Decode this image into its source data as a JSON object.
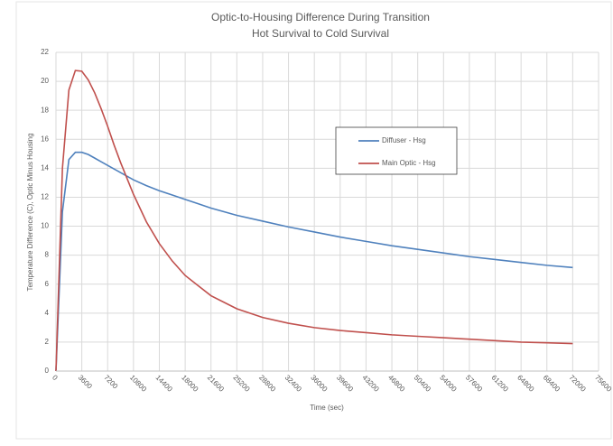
{
  "chart_data": {
    "type": "line",
    "title": "Optic-to-Housing Difference During Transition",
    "subtitle": "Hot Survival to Cold Survival",
    "x_label": "Time (sec)",
    "y_label": "Temperature Difference (C), Optic Minus Housing",
    "x": [
      0,
      900,
      1800,
      2700,
      3600,
      4500,
      5400,
      6300,
      7200,
      8100,
      9000,
      10800,
      12600,
      14400,
      16200,
      18000,
      19800,
      21600,
      25200,
      28800,
      32400,
      36000,
      39600,
      43200,
      46800,
      50400,
      54000,
      57600,
      61200,
      64800,
      68400,
      72000
    ],
    "series": [
      {
        "name": "Diffuser - Hsg",
        "color": "#4f81bd",
        "values": [
          0,
          11,
          14.6,
          15.1,
          15.1,
          14.95,
          14.7,
          14.45,
          14.2,
          13.95,
          13.7,
          13.2,
          12.8,
          12.45,
          12.15,
          11.85,
          11.55,
          11.25,
          10.75,
          10.35,
          9.95,
          9.6,
          9.25,
          8.95,
          8.65,
          8.4,
          8.15,
          7.9,
          7.7,
          7.5,
          7.3,
          7.15
        ]
      },
      {
        "name": "Main Optic - Hsg",
        "color": "#c0504d",
        "values": [
          0,
          14,
          19.4,
          20.75,
          20.7,
          20.1,
          19.2,
          18.1,
          16.9,
          15.6,
          14.4,
          12.2,
          10.3,
          8.8,
          7.6,
          6.6,
          5.9,
          5.2,
          4.3,
          3.7,
          3.3,
          3.0,
          2.8,
          2.65,
          2.5,
          2.4,
          2.3,
          2.2,
          2.1,
          2.0,
          1.95,
          1.9
        ]
      }
    ],
    "xlim": [
      0,
      75600
    ],
    "xticks": [
      0,
      3600,
      7200,
      10800,
      14400,
      18000,
      21600,
      25200,
      28800,
      32400,
      36000,
      39600,
      43200,
      46800,
      50400,
      54000,
      57600,
      61200,
      64800,
      68400,
      72000,
      75600
    ],
    "ylim": [
      0,
      22
    ],
    "yticks": [
      0,
      2,
      4,
      6,
      8,
      10,
      12,
      14,
      16,
      18,
      20,
      22
    ],
    "grid": true
  }
}
